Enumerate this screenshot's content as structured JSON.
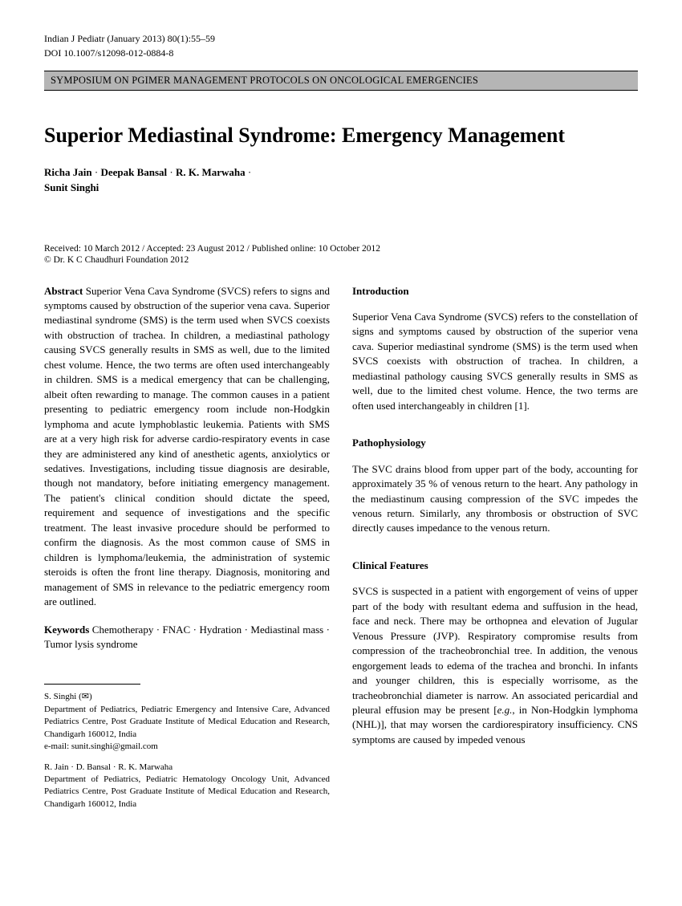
{
  "header": {
    "journal_line": "Indian J Pediatr (January 2013) 80(1):55–59",
    "doi_line": "DOI 10.1007/s12098-012-0884-8"
  },
  "banner": "SYMPOSIUM ON PGIMER MANAGEMENT PROTOCOLS ON ONCOLOGICAL EMERGENCIES",
  "title": "Superior Mediastinal Syndrome: Emergency Management",
  "authors": {
    "line1_a": "Richa Jain",
    "line1_b": "Deepak Bansal",
    "line1_c": "R. K. Marwaha",
    "line2_a": "Sunit Singhi",
    "sep": " · "
  },
  "dates": "Received: 10 March 2012 / Accepted: 23 August 2012 / Published online: 10 October 2012",
  "copyright": "© Dr. K C Chaudhuri Foundation 2012",
  "abstract": {
    "label": "Abstract",
    "text": " Superior Vena Cava Syndrome (SVCS) refers to signs and symptoms caused by obstruction of the superior vena cava. Superior mediastinal syndrome (SMS) is the term used when SVCS coexists with obstruction of trachea. In children, a mediastinal pathology causing SVCS generally results in SMS as well, due to the limited chest volume. Hence, the two terms are often used interchangeably in children. SMS is a medical emergency that can be challenging, albeit often rewarding to manage. The common causes in a patient presenting to pediatric emergency room include non-Hodgkin lymphoma and acute lymphoblastic leukemia. Patients with SMS are at a very high risk for adverse cardio-respiratory events in case they are administered any kind of anesthetic agents, anxiolytics or sedatives. Investigations, including tissue diagnosis are desirable, though not mandatory, before initiating emergency management. The patient's clinical condition should dictate the speed, requirement and sequence of investigations and the specific treatment. The least invasive procedure should be performed to confirm the diagnosis. As the most common cause of SMS in children is lymphoma/leukemia, the administration of systemic steroids is often the front line therapy. Diagnosis, monitoring and management of SMS in relevance to the pediatric emergency room are outlined."
  },
  "keywords": {
    "label": "Keywords",
    "text": " Chemotherapy · FNAC · Hydration · Mediastinal mass · Tumor lysis syndrome"
  },
  "footnotes": {
    "corr": {
      "name": "S. Singhi",
      "affiliation": "Department of Pediatrics, Pediatric Emergency and Intensive Care, Advanced Pediatrics Centre, Post Graduate Institute of Medical Education and Research, Chandigarh 160012, India",
      "email": "e-mail: sunit.singhi@gmail.com"
    },
    "others": {
      "names": "R. Jain · D. Bansal · R. K. Marwaha",
      "affiliation": "Department of Pediatrics, Pediatric Hematology Oncology Unit, Advanced Pediatrics Centre, Post Graduate Institute of Medical Education and Research, Chandigarh 160012, India"
    }
  },
  "right": {
    "intro": {
      "heading": "Introduction",
      "text_a": "Superior Vena Cava Syndrome (SVCS) refers to the constellation of signs and symptoms caused by obstruction of the superior vena cava. Superior mediastinal syndrome (SMS) is the term used when SVCS coexists with obstruction of trachea. In children, a mediastinal pathology causing SVCS generally results in SMS as well, due to the limited chest volume. Hence, the two terms are often used interchangeably in children [",
      "ref": "1",
      "text_b": "]."
    },
    "patho": {
      "heading": "Pathophysiology",
      "text": "The SVC drains blood from upper part of the body, accounting for approximately 35 % of venous return to the heart. Any pathology in the mediastinum causing compression of the SVC impedes the venous return. Similarly, any thrombosis or obstruction of SVC directly causes impedance to the venous return."
    },
    "clinical": {
      "heading": "Clinical Features",
      "text_a": "SVCS is suspected in a patient with engorgement of veins of upper part of the body with resultant edema and suffusion in the head, face and neck. There may be orthopnea and elevation of Jugular Venous Pressure (JVP). Respiratory compromise results from compression of the tracheobronchial tree. In addition, the venous engorgement leads to edema of the trachea and bronchi. In infants and younger children, this is especially worrisome, as the tracheobronchial diameter is narrow. An associated pericardial and pleural effusion may be present [",
      "eg": "e.g.",
      "text_b": ", in Non-Hodgkin lymphoma (NHL)], that may worsen the cardiorespiratory insufficiency. CNS symptoms are caused by impeded venous"
    }
  }
}
